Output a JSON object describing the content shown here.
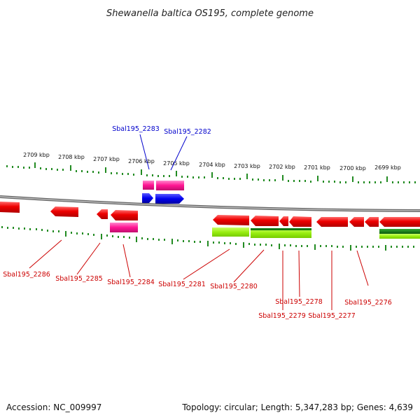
{
  "title": "Shewanella baltica OS195, complete genome",
  "ticks": [
    "2709 kbp",
    "2708 kbp",
    "2707 kbp",
    "2706 kbp",
    "2705 kbp",
    "2704 kbp",
    "2703 kbp",
    "2702 kbp",
    "2701 kbp",
    "2700 kbp",
    "2699 kbp"
  ],
  "genes_top": [
    {
      "label": "Sbal195_2283",
      "color": "#0000cc"
    },
    {
      "label": "Sbal195_2282",
      "color": "#0000cc"
    }
  ],
  "genes_bottom": [
    {
      "label": "Sbal195_2286",
      "color": "#cc0000"
    },
    {
      "label": "Sbal195_2285",
      "color": "#cc0000"
    },
    {
      "label": "Sbal195_2284",
      "color": "#cc0000"
    },
    {
      "label": "Sbal195_2281",
      "color": "#cc0000"
    },
    {
      "label": "Sbal195_2280",
      "color": "#cc0000"
    },
    {
      "label": "Sbal195_2278",
      "color": "#cc0000"
    },
    {
      "label": "Sbal195_2279",
      "color": "#cc0000"
    },
    {
      "label": "Sbal195_2277",
      "color": "#cc0000"
    },
    {
      "label": "Sbal195_2276",
      "color": "#cc0000"
    }
  ],
  "colors": {
    "cds_forward": "#ee0000",
    "cds_reverse": "#ee0000",
    "gene_pink": "#ff1493",
    "gene_blue": "#0000ee",
    "gc_green_light": "#99ee11",
    "gc_green_dark": "#117711",
    "tick_green": "#228b22",
    "backbone": "#888888"
  },
  "footer": {
    "accession": "Accession: NC_009997",
    "summary": "Topology: circular; Length: 5,347,283 bp; Genes: 4,639"
  }
}
